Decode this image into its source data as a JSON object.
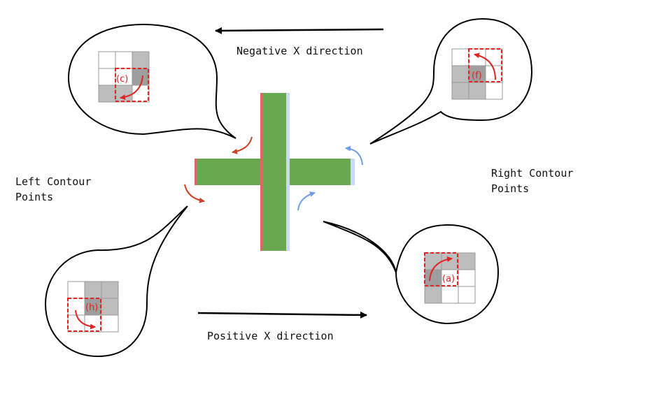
{
  "labels": {
    "negative_x": "Negative X direction",
    "positive_x": "Positive X direction",
    "left_line1": "Left Contour",
    "left_line2": "Points",
    "right_line1": "Right Contour",
    "right_line2": "Points"
  },
  "callouts": {
    "c": "(c)",
    "f": "(f)",
    "h": "(h)",
    "a": "(a)"
  },
  "colors": {
    "cross_fill": "#6aa84f",
    "left_edge": "#e06666",
    "right_edge": "#a4c2f4",
    "left_arrow": "#cc4125",
    "right_arrow": "#6d9eeb",
    "cell_gray": "#bdbdbd",
    "cell_dark": "#9e9e9e",
    "dashed_box": "#e02424"
  }
}
